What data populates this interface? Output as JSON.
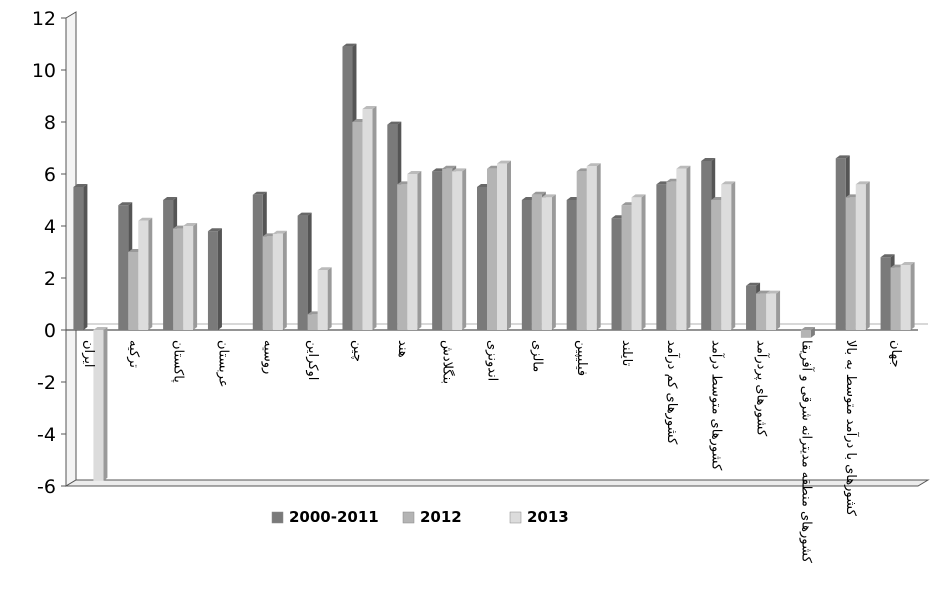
{
  "chart_data": {
    "type": "bar",
    "categories": [
      "ایران",
      "ترکیه",
      "پاکستان",
      "عربستان",
      "روسیه",
      "اوکراین",
      "چین",
      "هند",
      "بنگلادش",
      "اندونزی",
      "مالزی",
      "فیلیپین",
      "تایلند",
      "کشورهای کم درآمد",
      "کشورهای متوسط درآمد",
      "کشورهای پردرآمد",
      "کشورهای منطقه مدیترانه شرقی و آفریقا",
      "کشورهای با درآمد متوسط به بالا",
      "جهان"
    ],
    "series": [
      {
        "name": "2000-2011",
        "values": [
          5.5,
          4.8,
          5.0,
          3.8,
          5.2,
          4.4,
          10.9,
          7.9,
          6.1,
          5.5,
          5.0,
          5.0,
          4.3,
          5.6,
          6.5,
          1.7,
          null,
          6.6,
          2.8
        ]
      },
      {
        "name": "2012",
        "values": [
          null,
          3.0,
          3.9,
          null,
          3.6,
          0.6,
          8.0,
          5.6,
          6.2,
          6.2,
          5.2,
          6.1,
          4.8,
          5.7,
          5.0,
          1.4,
          -0.3,
          5.1,
          2.4
        ]
      },
      {
        "name": "2013",
        "values": [
          -5.8,
          4.2,
          4.0,
          null,
          3.7,
          2.3,
          8.5,
          6.0,
          6.1,
          6.4,
          5.1,
          6.3,
          5.1,
          6.2,
          5.6,
          1.4,
          null,
          5.6,
          2.5
        ]
      }
    ],
    "ylim": [
      -6,
      12
    ],
    "yticks": [
      -6,
      -4,
      -2,
      0,
      2,
      4,
      6,
      8,
      10,
      12
    ],
    "ytick_labels": [
      "-6",
      "-4",
      "-2",
      "0",
      "2",
      "4",
      "6",
      "8",
      "10",
      "12"
    ],
    "legend": [
      "2000-2011",
      "2012",
      "2013"
    ],
    "legend_position": "bottom",
    "colors": {
      "series": [
        "#7a7a7a",
        "#b4b4b4",
        "#dcdcdc"
      ],
      "axis": "#555555"
    }
  }
}
